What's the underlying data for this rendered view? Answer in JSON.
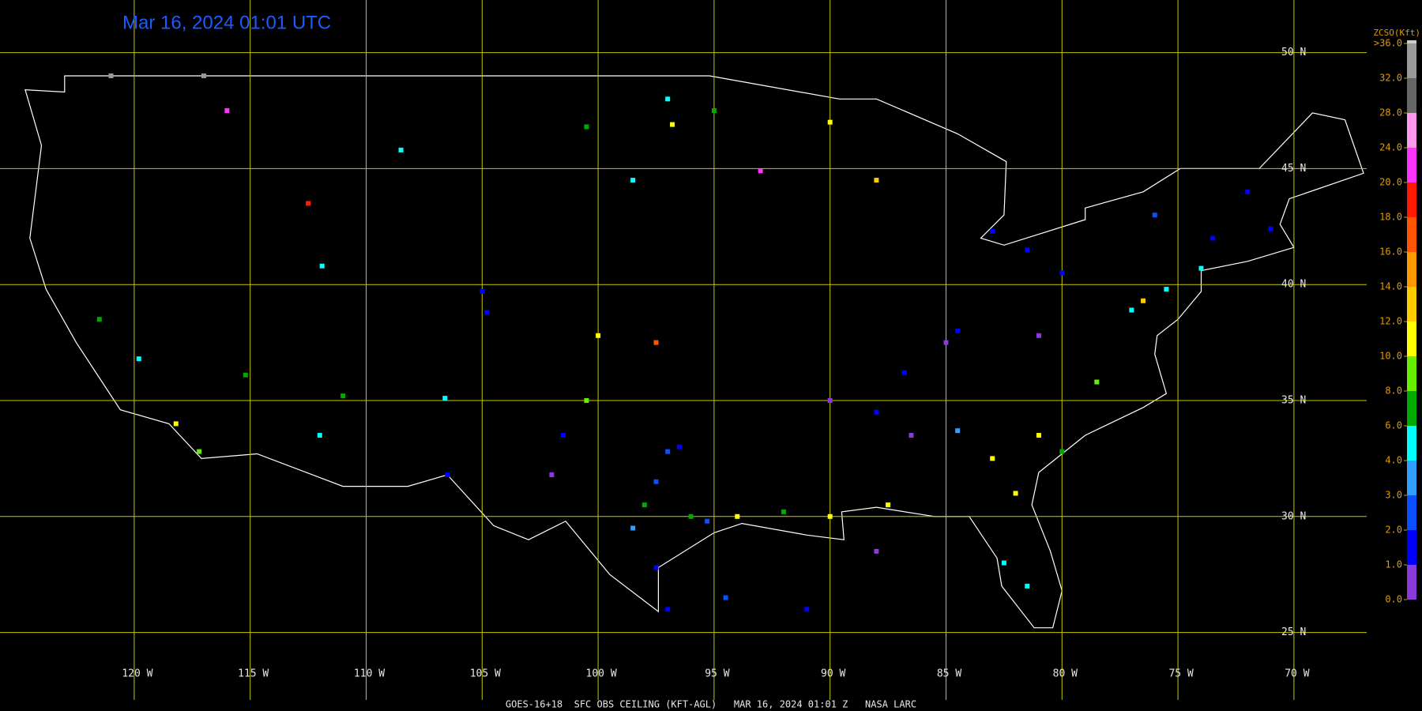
{
  "header": {
    "title": "Mar 16, 2024 01:01 UTC"
  },
  "footer": {
    "caption": "GOES-16+18  SFC OBS CEILING (KFT-AGL)   MAR 16, 2024 01:01 Z   NASA LARC"
  },
  "grid": {
    "latitudes": [
      {
        "value": 50,
        "label": "50 N"
      },
      {
        "value": 45,
        "label": "45 N"
      },
      {
        "value": 40,
        "label": "40 N"
      },
      {
        "value": 35,
        "label": "35 N"
      },
      {
        "value": 30,
        "label": "30 N"
      },
      {
        "value": 25,
        "label": "25 N"
      }
    ],
    "longitudes": [
      {
        "value": -120,
        "label": "120 W"
      },
      {
        "value": -115,
        "label": "115 W"
      },
      {
        "value": -110,
        "label": "110 W"
      },
      {
        "value": -105,
        "label": "105 W"
      },
      {
        "value": -100,
        "label": "100 W"
      },
      {
        "value": -95,
        "label": "95 W"
      },
      {
        "value": -90,
        "label": "90 W"
      },
      {
        "value": -85,
        "label": "85 W"
      },
      {
        "value": -80,
        "label": "80 W"
      },
      {
        "value": -75,
        "label": "75 W"
      },
      {
        "value": -70,
        "label": "70 W"
      }
    ],
    "color": "#c8c800"
  },
  "legend": {
    "title": "ZCSO(Kft)",
    "ticks": [
      {
        "value": 0,
        "label": "0.0"
      },
      {
        "value": 1,
        "label": "1.0"
      },
      {
        "value": 2,
        "label": "2.0"
      },
      {
        "value": 3,
        "label": "3.0"
      },
      {
        "value": 4,
        "label": "4.0"
      },
      {
        "value": 6,
        "label": "6.0"
      },
      {
        "value": 8,
        "label": "8.0"
      },
      {
        "value": 10,
        "label": "10.0"
      },
      {
        "value": 12,
        "label": "12.0"
      },
      {
        "value": 14,
        "label": "14.0"
      },
      {
        "value": 16,
        "label": "16.0"
      },
      {
        "value": 18,
        "label": "18.0"
      },
      {
        "value": 20,
        "label": "20.0"
      },
      {
        "value": 24,
        "label": "24.0"
      },
      {
        "value": 28,
        "label": "28.0"
      },
      {
        "value": 32,
        "label": "32.0"
      },
      {
        "value": 36,
        "label": ">36.0"
      }
    ],
    "colors": [
      "#8a3ad8",
      "#0000ff",
      "#0a50ff",
      "#2fa0ff",
      "#00ffff",
      "#00aa00",
      "#66ee00",
      "#ffff00",
      "#ffcc00",
      "#ff9900",
      "#ff5500",
      "#ff1a00",
      "#ff33ff",
      "#ff99ee",
      "#666666",
      "#999999"
    ],
    "top_color": "#cccccc"
  },
  "stations": [
    {
      "lon": -97,
      "lat": 32.8,
      "ceiling": 2.5
    },
    {
      "lon": -96.5,
      "lat": 33,
      "ceiling": 1.5
    },
    {
      "lon": -97.5,
      "lat": 31.5,
      "ceiling": 2.5
    },
    {
      "lon": -98,
      "lat": 30.5,
      "ceiling": 7
    },
    {
      "lon": -96,
      "lat": 30,
      "ceiling": 6.5
    },
    {
      "lon": -95.3,
      "lat": 29.8,
      "ceiling": 2.5
    },
    {
      "lon": -97.5,
      "lat": 27.8,
      "ceiling": 1.5
    },
    {
      "lon": -98.5,
      "lat": 29.5,
      "ceiling": 3.5
    },
    {
      "lon": -97,
      "lat": 26,
      "ceiling": 1.2
    },
    {
      "lon": -101.5,
      "lat": 33.5,
      "ceiling": 1.5
    },
    {
      "lon": -102,
      "lat": 31.8,
      "ceiling": 0.5
    },
    {
      "lon": -106.5,
      "lat": 31.8,
      "ceiling": 1.5
    },
    {
      "lon": -84.5,
      "lat": 33.7,
      "ceiling": 3.5
    },
    {
      "lon": -83,
      "lat": 32.5,
      "ceiling": 10.5
    },
    {
      "lon": -81,
      "lat": 33.5,
      "ceiling": 11
    },
    {
      "lon": -80,
      "lat": 32.8,
      "ceiling": 7
    },
    {
      "lon": -82,
      "lat": 31,
      "ceiling": 10.5
    },
    {
      "lon": -86.5,
      "lat": 33.5,
      "ceiling": 0.8
    },
    {
      "lon": -88,
      "lat": 34.5,
      "ceiling": 1.5
    },
    {
      "lon": -90,
      "lat": 35,
      "ceiling": 0.8
    },
    {
      "lon": -86.8,
      "lat": 36.2,
      "ceiling": 1.5
    },
    {
      "lon": -84.5,
      "lat": 38,
      "ceiling": 1.5
    },
    {
      "lon": -85,
      "lat": 37.5,
      "ceiling": 0.8
    },
    {
      "lon": -81,
      "lat": 37.8,
      "ceiling": 0.5
    },
    {
      "lon": -78.5,
      "lat": 35.8,
      "ceiling": 8.5
    },
    {
      "lon": -77,
      "lat": 38.9,
      "ceiling": 4.5
    },
    {
      "lon": -76.5,
      "lat": 39.3,
      "ceiling": 12.5
    },
    {
      "lon": -75.5,
      "lat": 39.8,
      "ceiling": 4.5
    },
    {
      "lon": -74,
      "lat": 40.7,
      "ceiling": 5
    },
    {
      "lon": -73.5,
      "lat": 42,
      "ceiling": 1.5
    },
    {
      "lon": -71,
      "lat": 42.4,
      "ceiling": 1.5
    },
    {
      "lon": -72,
      "lat": 44,
      "ceiling": 1.8
    },
    {
      "lon": -80,
      "lat": 40.5,
      "ceiling": 1.5
    },
    {
      "lon": -81.5,
      "lat": 41.5,
      "ceiling": 1.5
    },
    {
      "lon": -83,
      "lat": 42.3,
      "ceiling": 1.5
    },
    {
      "lon": -76,
      "lat": 43,
      "ceiling": 2.5
    },
    {
      "lon": -90,
      "lat": 30,
      "ceiling": 10.5
    },
    {
      "lon": -92,
      "lat": 30.2,
      "ceiling": 6.5
    },
    {
      "lon": -94,
      "lat": 30,
      "ceiling": 11
    },
    {
      "lon": -87.5,
      "lat": 30.5,
      "ceiling": 10.5
    },
    {
      "lon": -81.5,
      "lat": 27,
      "ceiling": 5
    },
    {
      "lon": -82.5,
      "lat": 28,
      "ceiling": 4.5
    },
    {
      "lon": -96.8,
      "lat": 46.9,
      "ceiling": 11
    },
    {
      "lon": -95,
      "lat": 47.5,
      "ceiling": 7
    },
    {
      "lon": -97,
      "lat": 48,
      "ceiling": 5
    },
    {
      "lon": -93,
      "lat": 44.9,
      "ceiling": 20.5
    },
    {
      "lon": -88,
      "lat": 44.5,
      "ceiling": 13
    },
    {
      "lon": -90,
      "lat": 47,
      "ceiling": 10.5
    },
    {
      "lon": -100.5,
      "lat": 46.8,
      "ceiling": 7
    },
    {
      "lon": -98.5,
      "lat": 44.5,
      "ceiling": 4.5
    },
    {
      "lon": -117.2,
      "lat": 32.8,
      "ceiling": 9
    },
    {
      "lon": -118.2,
      "lat": 34,
      "ceiling": 10.5
    },
    {
      "lon": -119.8,
      "lat": 36.8,
      "ceiling": 4.5
    },
    {
      "lon": -121.5,
      "lat": 38.5,
      "ceiling": 6.5
    },
    {
      "lon": -115.2,
      "lat": 36.1,
      "ceiling": 6.5
    },
    {
      "lon": -112,
      "lat": 33.5,
      "ceiling": 5
    },
    {
      "lon": -111,
      "lat": 35.2,
      "ceiling": 6.5
    },
    {
      "lon": -106.6,
      "lat": 35.1,
      "ceiling": 4.5
    },
    {
      "lon": -105,
      "lat": 39.7,
      "ceiling": 1
    },
    {
      "lon": -104.8,
      "lat": 38.8,
      "ceiling": 1.5
    },
    {
      "lon": -111.9,
      "lat": 40.8,
      "ceiling": 4.5
    },
    {
      "lon": -112.5,
      "lat": 43.5,
      "ceiling": 18
    },
    {
      "lon": -108.5,
      "lat": 45.8,
      "ceiling": 4.5
    },
    {
      "lon": -100,
      "lat": 37.8,
      "ceiling": 10.5
    },
    {
      "lon": -97.5,
      "lat": 37.5,
      "ceiling": 17
    },
    {
      "lon": -100.5,
      "lat": 35,
      "ceiling": 8.5
    },
    {
      "lon": -117,
      "lat": 49,
      "ceiling": 33
    },
    {
      "lon": -121,
      "lat": 49,
      "ceiling": 33
    },
    {
      "lon": -116,
      "lat": 47.5,
      "ceiling": 20.5
    },
    {
      "lon": -94.5,
      "lat": 26.5,
      "ceiling": 2.5
    },
    {
      "lon": -91,
      "lat": 26,
      "ceiling": 1.2
    },
    {
      "lon": -88,
      "lat": 28.5,
      "ceiling": 0.5
    }
  ]
}
